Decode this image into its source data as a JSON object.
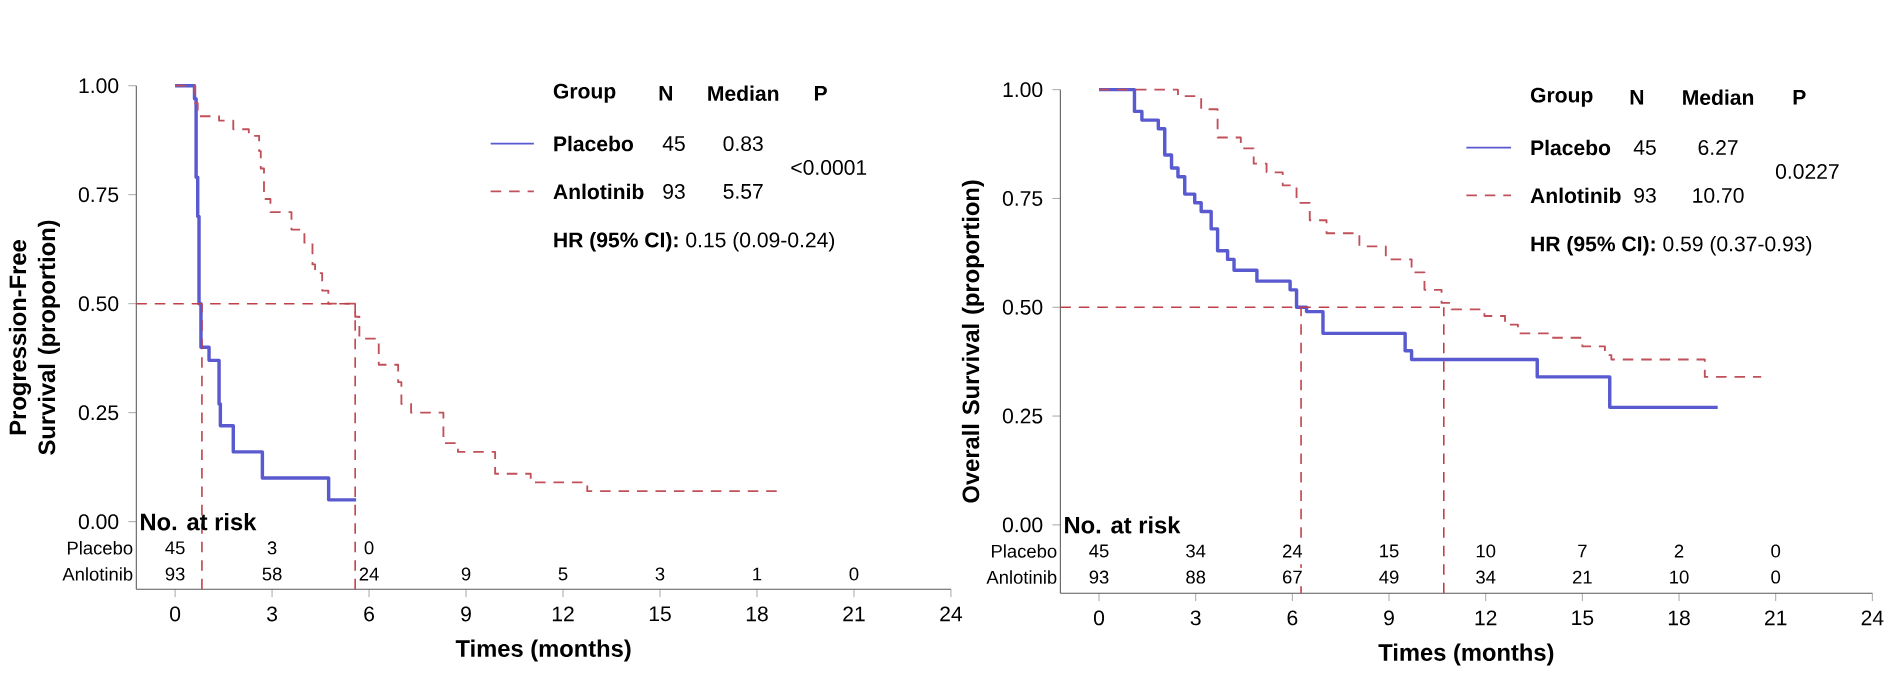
{
  "chart_data": [
    {
      "type": "step",
      "xlabel": "Times (months)",
      "ylabel": "Progression-Free Survival (proportion)",
      "xlim": [
        -1.2,
        24
      ],
      "ylim": [
        -0.155,
        1.0
      ],
      "xticks": [
        0,
        3,
        6,
        9,
        12,
        15,
        18,
        21,
        24
      ],
      "yticks": [
        {
          "value": 0,
          "label": "0.00"
        },
        {
          "value": 0.25,
          "label": "0.25"
        },
        {
          "value": 0.5,
          "label": "0.50"
        },
        {
          "value": 0.75,
          "label": "0.75"
        },
        {
          "value": 1,
          "label": "1.00"
        }
      ],
      "legend": "top right",
      "series": [
        {
          "name": "Placebo",
          "color": "#5a5ad0",
          "line_style": "solid",
          "x": [
            0,
            0.6,
            0.65,
            0.7,
            0.74,
            0.8,
            1.05,
            1.36,
            1.4,
            1.8,
            2.7,
            4.75,
            5.6
          ],
          "values": [
            1,
            0.97,
            0.79,
            0.7,
            0.5,
            0.4,
            0.37,
            0.27,
            0.22,
            0.16,
            0.1,
            0.05,
            0.05
          ]
        },
        {
          "name": "Anlotinib",
          "color": "#c0505a",
          "line_style": "dashed",
          "x": [
            0,
            0.62,
            0.7,
            1.36,
            1.8,
            2.28,
            2.6,
            2.65,
            2.75,
            2.95,
            3.6,
            4.0,
            4.25,
            4.33,
            4.55,
            4.74,
            5.57,
            5.7,
            6.3,
            6.9,
            7.0,
            7.3,
            8.3,
            8.75,
            9.9,
            11.0,
            12.75,
            18.7
          ],
          "values": [
            1,
            0.96,
            0.93,
            0.92,
            0.9,
            0.885,
            0.85,
            0.81,
            0.74,
            0.71,
            0.67,
            0.64,
            0.59,
            0.57,
            0.53,
            0.5,
            0.47,
            0.42,
            0.36,
            0.32,
            0.27,
            0.25,
            0.18,
            0.16,
            0.11,
            0.09,
            0.07,
            0.07
          ]
        }
      ],
      "ref_lines": [
        {
          "axis": "y",
          "value": 0.5,
          "color": "#c0404a",
          "line_style": "dashed"
        },
        {
          "axis": "x",
          "value": 0.83,
          "color": "#c0404a",
          "line_style": "dashed"
        },
        {
          "axis": "x",
          "value": 5.57,
          "color": "#c0404a",
          "line_style": "dashed"
        }
      ],
      "annotations": [
        "Group",
        "N",
        "Median",
        "P",
        "45",
        "93",
        "0.83",
        "5.57",
        "<0.0001",
        "**HR (95% CI):** 0.15 (0.09-0.24)",
        "No. at risk",
        "45",
        "3",
        "0",
        "93",
        "58",
        "24",
        "9",
        "5",
        "3",
        "1",
        "0"
      ]
    },
    {
      "type": "step",
      "xlabel": "Times (months)",
      "ylabel": "Overall Survival (proportion)",
      "xlim": [
        -1.2,
        24
      ],
      "ylim": [
        -0.157,
        1.0
      ],
      "xticks": [
        0,
        3,
        6,
        9,
        12,
        15,
        18,
        21,
        24
      ],
      "yticks": [
        {
          "value": 0,
          "label": "0.00"
        },
        {
          "value": 0.25,
          "label": "0.25"
        },
        {
          "value": 0.5,
          "label": "0.50"
        },
        {
          "value": 0.75,
          "label": "0.75"
        },
        {
          "value": 1,
          "label": "1.00"
        }
      ],
      "legend": "top right",
      "series": [
        {
          "name": "Placebo",
          "color": "#5a5ad0",
          "line_style": "solid",
          "x": [
            0,
            1.1,
            1.33,
            1.84,
            2.04,
            2.25,
            2.45,
            2.66,
            2.97,
            3.17,
            3.48,
            3.68,
            3.99,
            4.19,
            4.9,
            5.93,
            6.13,
            6.44,
            6.95,
            9.5,
            9.7,
            13.6,
            15.85,
            19.2
          ],
          "values": [
            1,
            0.95,
            0.93,
            0.91,
            0.85,
            0.82,
            0.8,
            0.76,
            0.74,
            0.72,
            0.68,
            0.63,
            0.61,
            0.585,
            0.56,
            0.54,
            0.5,
            0.49,
            0.44,
            0.4,
            0.38,
            0.34,
            0.27,
            0.27
          ]
        },
        {
          "name": "Anlotinib",
          "color": "#c0505a",
          "line_style": "dashed",
          "x": [
            0,
            2.45,
            3.17,
            3.68,
            4.4,
            4.8,
            5.2,
            5.7,
            6.13,
            6.54,
            7.06,
            8.08,
            8.9,
            9.7,
            10.1,
            10.63,
            10.94,
            11.96,
            12.6,
            13.0,
            14.0,
            15.0,
            15.7,
            15.9,
            18.8,
            20.55
          ],
          "values": [
            1,
            0.985,
            0.955,
            0.89,
            0.865,
            0.83,
            0.81,
            0.78,
            0.74,
            0.7,
            0.67,
            0.64,
            0.61,
            0.58,
            0.54,
            0.51,
            0.495,
            0.48,
            0.46,
            0.44,
            0.43,
            0.41,
            0.39,
            0.38,
            0.34,
            0.34
          ]
        }
      ],
      "ref_lines": [
        {
          "axis": "y",
          "value": 0.5,
          "color": "#c0404a",
          "line_style": "dashed"
        },
        {
          "axis": "x",
          "value": 6.27,
          "color": "#c0404a",
          "line_style": "dashed"
        },
        {
          "axis": "x",
          "value": 10.7,
          "color": "#c0404a",
          "line_style": "dashed"
        }
      ],
      "annotations": [
        "Group",
        "N",
        "Median",
        "P",
        "45",
        "93",
        "6.27",
        "10.70",
        "0.0227",
        "**HR (95% CI):** 0.59 (0.37-0.93)",
        "No. at risk",
        "45",
        "34",
        "24",
        "15",
        "10",
        "7",
        "2",
        "0",
        "93",
        "88",
        "67",
        "49",
        "34",
        "21",
        "10",
        "0"
      ]
    }
  ]
}
